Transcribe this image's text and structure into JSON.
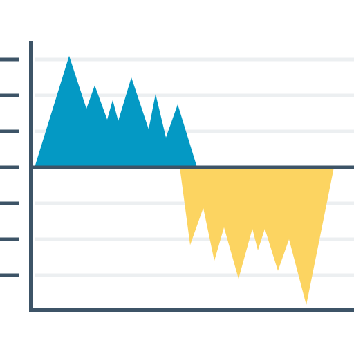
{
  "colors": {
    "axis": "#3d5467",
    "grid": "#eceff1",
    "positive_area": "#0499c4",
    "negative_area": "#fcd461",
    "background": "#ffffff"
  },
  "chart_data": {
    "type": "area",
    "grid": true,
    "legend": "none",
    "ylim": [
      -4,
      3
    ],
    "y_ticks": [
      3,
      2,
      1,
      0,
      -1,
      -2,
      -3
    ],
    "series": [
      {
        "color": "#0499c4",
        "points": [
          [
            0.5,
            0
          ],
          [
            5.5,
            3.1
          ],
          [
            8,
            1.63
          ],
          [
            9.2,
            2.28
          ],
          [
            11,
            1.33
          ],
          [
            11.8,
            1.87
          ],
          [
            12.6,
            1.29
          ],
          [
            14.5,
            2.5
          ],
          [
            17,
            1.06
          ],
          [
            18,
            2.04
          ],
          [
            19.5,
            0.83
          ],
          [
            21.2,
            1.75
          ],
          [
            24,
            0
          ]
        ]
      },
      {
        "color": "#fcd461",
        "points": [
          [
            21.5,
            0
          ],
          [
            23,
            -2.16
          ],
          [
            24.9,
            -1.13
          ],
          [
            26.5,
            -2.6
          ],
          [
            27.9,
            -1.67
          ],
          [
            30,
            -3.1
          ],
          [
            32,
            -1.71
          ],
          [
            32.8,
            -2.31
          ],
          [
            33.8,
            -1.71
          ],
          [
            35.7,
            -2.88
          ],
          [
            37.3,
            -2.0
          ],
          [
            39.8,
            -3.83
          ],
          [
            43.8,
            0
          ]
        ]
      }
    ]
  }
}
